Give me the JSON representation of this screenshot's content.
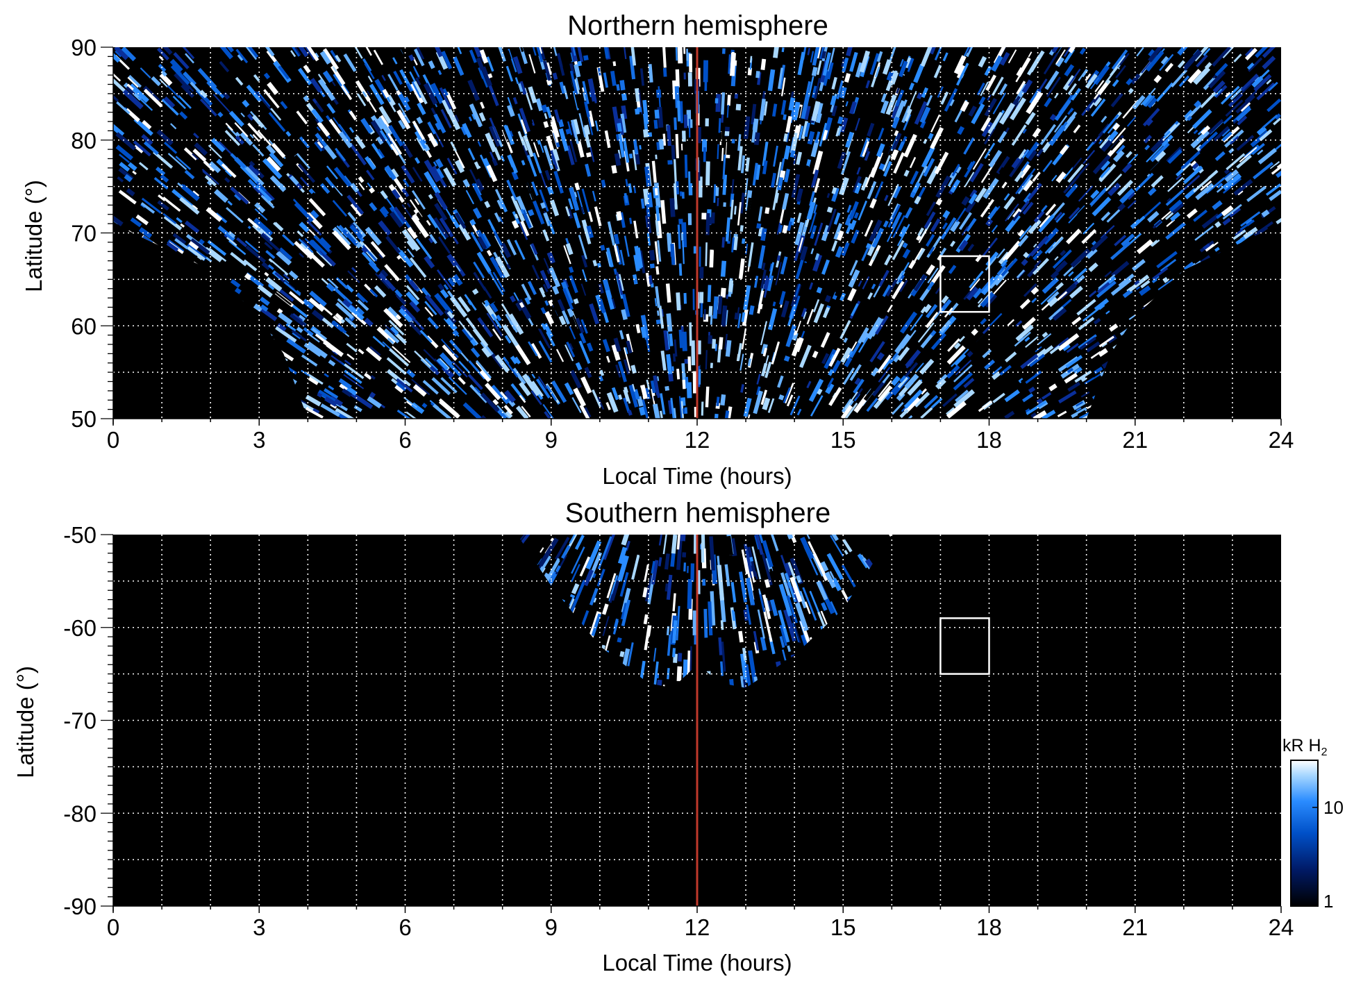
{
  "chart_data": [
    {
      "type": "heatmap",
      "title": "Northern hemisphere",
      "xlabel": "Local Time (hours)",
      "ylabel": "Latitude (°)",
      "xlim": [
        0,
        24
      ],
      "ylim": [
        50,
        90
      ],
      "xticks": [
        "0",
        "3",
        "6",
        "9",
        "12",
        "15",
        "18",
        "21",
        "24"
      ],
      "yticks": [
        "50",
        "60",
        "70",
        "80",
        "90"
      ],
      "grid": true,
      "reference_line": {
        "x": 12,
        "color": "#c0392b"
      },
      "box": {
        "x": [
          17,
          18
        ],
        "y": [
          61.5,
          67.5
        ]
      },
      "coverage_edge": [
        [
          0,
          71
        ],
        [
          2,
          66
        ],
        [
          3,
          61
        ],
        [
          3.5,
          57
        ],
        [
          4,
          50
        ],
        [
          20,
          50
        ],
        [
          20.5,
          57
        ],
        [
          21,
          61
        ],
        [
          22,
          66
        ],
        [
          24,
          71
        ]
      ]
    },
    {
      "type": "heatmap",
      "title": "Southern hemisphere",
      "xlabel": "Local Time (hours)",
      "ylabel": "Latitude (°)",
      "xlim": [
        0,
        24
      ],
      "ylim": [
        -90,
        -50
      ],
      "xticks": [
        "0",
        "3",
        "6",
        "9",
        "12",
        "15",
        "18",
        "21",
        "24"
      ],
      "yticks": [
        "-90",
        "-80",
        "-70",
        "-60",
        "-50"
      ],
      "grid": true,
      "reference_line": {
        "x": 12,
        "color": "#c0392b"
      },
      "box": {
        "x": [
          17,
          18
        ],
        "y": [
          -65,
          -59
        ]
      },
      "coverage_edge": [
        [
          8.3,
          -50
        ],
        [
          9,
          -55.5
        ],
        [
          10,
          -62
        ],
        [
          11,
          -66
        ],
        [
          11.5,
          -66.5
        ],
        [
          12,
          -64
        ],
        [
          12.5,
          -66
        ],
        [
          13,
          -66.5
        ],
        [
          14,
          -63
        ],
        [
          15,
          -58
        ],
        [
          16,
          -50
        ]
      ]
    }
  ],
  "colorbar": {
    "label_main": "kR H",
    "label_sub": "2",
    "ticks": [
      "1",
      "10"
    ],
    "tick_values": [
      1,
      10
    ],
    "range": [
      1,
      30
    ],
    "scale": "log",
    "colors": [
      "#000000",
      "#001a66",
      "#0050c8",
      "#2a8cff",
      "#a9d8ff",
      "#ffffff"
    ]
  }
}
